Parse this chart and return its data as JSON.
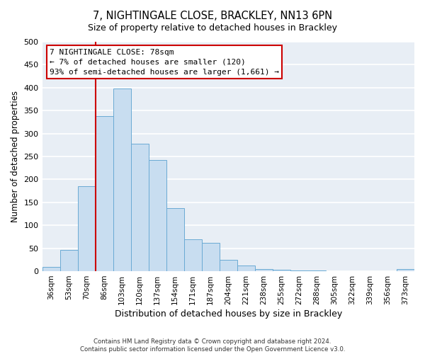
{
  "title": "7, NIGHTINGALE CLOSE, BRACKLEY, NN13 6PN",
  "subtitle": "Size of property relative to detached houses in Brackley",
  "xlabel": "Distribution of detached houses by size in Brackley",
  "ylabel": "Number of detached properties",
  "bar_color": "#c8ddf0",
  "bar_edge_color": "#6aaad4",
  "categories": [
    "36sqm",
    "53sqm",
    "70sqm",
    "86sqm",
    "103sqm",
    "120sqm",
    "137sqm",
    "154sqm",
    "171sqm",
    "187sqm",
    "204sqm",
    "221sqm",
    "238sqm",
    "255sqm",
    "272sqm",
    "288sqm",
    "305sqm",
    "322sqm",
    "339sqm",
    "356sqm",
    "373sqm"
  ],
  "values": [
    10,
    47,
    185,
    338,
    398,
    278,
    242,
    137,
    70,
    62,
    25,
    12,
    5,
    3,
    2,
    1,
    0,
    0,
    0,
    0,
    4
  ],
  "ylim": [
    0,
    500
  ],
  "yticks": [
    0,
    50,
    100,
    150,
    200,
    250,
    300,
    350,
    400,
    450,
    500
  ],
  "vline_color": "#cc0000",
  "vline_x": 2.5,
  "annotation_line1": "7 NIGHTINGALE CLOSE: 78sqm",
  "annotation_line2": "← 7% of detached houses are smaller (120)",
  "annotation_line3": "93% of semi-detached houses are larger (1,661) →",
  "footer_line1": "Contains HM Land Registry data © Crown copyright and database right 2024.",
  "footer_line2": "Contains public sector information licensed under the Open Government Licence v3.0.",
  "background_color": "#e8eef5",
  "grid_color": "#ffffff",
  "fig_bg": "#ffffff"
}
